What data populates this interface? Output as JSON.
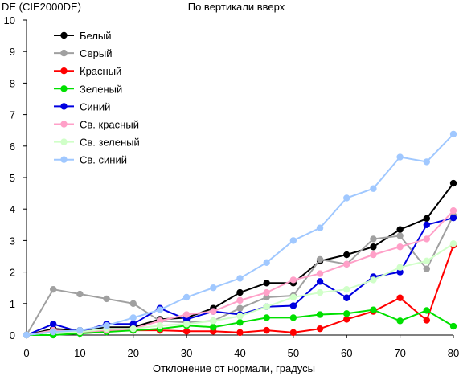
{
  "chart_data": {
    "type": "line",
    "title": "По вертикали вверх",
    "ylabel": "DE (CIE2000DE)",
    "xlabel": "Отклонение от нормали, градусы",
    "x": [
      0,
      5,
      10,
      15,
      20,
      25,
      30,
      35,
      40,
      45,
      50,
      55,
      60,
      65,
      70,
      75,
      80
    ],
    "xlim": [
      0,
      80
    ],
    "ylim": [
      0,
      10
    ],
    "xticks": [
      0,
      10,
      20,
      30,
      40,
      50,
      60,
      70,
      80
    ],
    "yticks": [
      0,
      1,
      2,
      3,
      4,
      5,
      6,
      7,
      8,
      9,
      10
    ],
    "grid": false,
    "legend_position": "top-left",
    "series": [
      {
        "name": "Белый",
        "color": "#000000",
        "values": [
          0,
          0.2,
          0.15,
          0.25,
          0.25,
          0.5,
          0.55,
          0.85,
          1.35,
          1.65,
          1.65,
          2.35,
          2.55,
          2.8,
          3.35,
          3.7,
          4.82
        ]
      },
      {
        "name": "Серый",
        "color": "#a0a0a0",
        "values": [
          0,
          1.45,
          1.3,
          1.15,
          1.0,
          0.45,
          0.4,
          0.45,
          0.85,
          1.2,
          1.25,
          2.4,
          2.25,
          3.05,
          3.15,
          2.1,
          3.8
        ]
      },
      {
        "name": "Красный",
        "color": "#ff0000",
        "values": [
          0,
          0.1,
          0.1,
          0.15,
          0.15,
          0.15,
          0.12,
          0.12,
          0.08,
          0.15,
          0.08,
          0.2,
          0.5,
          0.75,
          1.18,
          0.47,
          2.85
        ]
      },
      {
        "name": "Зеленый",
        "color": "#00e000",
        "values": [
          0,
          0.0,
          0.05,
          0.1,
          0.15,
          0.2,
          0.3,
          0.25,
          0.4,
          0.55,
          0.55,
          0.65,
          0.68,
          0.8,
          0.45,
          0.78,
          0.28
        ]
      },
      {
        "name": "Синий",
        "color": "#0000e0",
        "values": [
          0,
          0.35,
          0.1,
          0.35,
          0.35,
          0.85,
          0.5,
          0.75,
          0.65,
          0.9,
          0.93,
          1.7,
          1.18,
          1.85,
          2.0,
          3.5,
          3.72
        ]
      },
      {
        "name": "Св. красный",
        "color": "#ffa0c8",
        "values": [
          0,
          0.15,
          0.1,
          0.15,
          0.2,
          0.45,
          0.65,
          0.75,
          1.1,
          1.35,
          1.75,
          1.95,
          2.25,
          2.55,
          2.8,
          3.05,
          3.95
        ]
      },
      {
        "name": "Св. зеленый",
        "color": "#d0ffc8",
        "values": [
          0,
          0.1,
          0.1,
          0.2,
          0.2,
          0.3,
          0.35,
          0.45,
          0.6,
          0.9,
          1.2,
          1.35,
          1.45,
          1.75,
          2.15,
          2.35,
          2.9
        ]
      },
      {
        "name": "Св. синий",
        "color": "#a0c8ff",
        "values": [
          0,
          0.1,
          0.15,
          0.3,
          0.55,
          0.8,
          1.2,
          1.5,
          1.8,
          2.3,
          3.0,
          3.4,
          4.35,
          4.65,
          5.65,
          5.5,
          6.38
        ]
      }
    ]
  }
}
